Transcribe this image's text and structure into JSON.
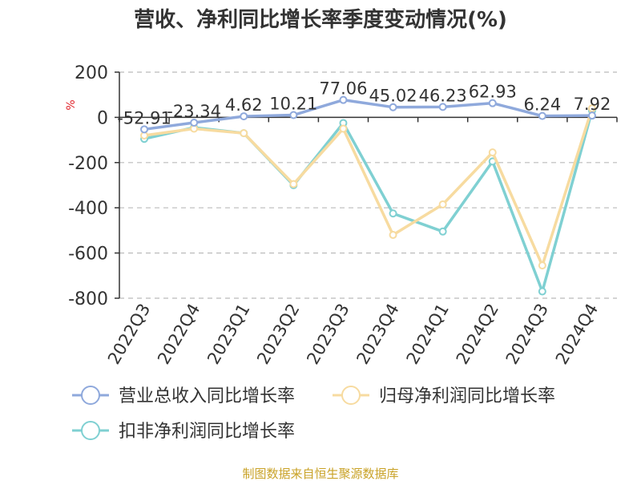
{
  "chart_data": {
    "type": "line",
    "title": "营收、净利同比增长率季度变动情况(%)",
    "ylabel": "%",
    "ylim": [
      -800,
      200
    ],
    "yticks": [
      200,
      0,
      -200,
      -400,
      -600,
      -800
    ],
    "grid": true,
    "legend_position": "bottom",
    "categories": [
      "2022Q3",
      "2022Q4",
      "2023Q1",
      "2023Q2",
      "2023Q3",
      "2023Q4",
      "2024Q1",
      "2024Q2",
      "2024Q3",
      "2024Q4"
    ],
    "series": [
      {
        "name": "营业总收入同比增长率",
        "color": "#8fa9dc",
        "values": [
          -52.91,
          -23.34,
          4.62,
          10.21,
          77.06,
          45.02,
          46.23,
          62.93,
          6.24,
          7.92
        ],
        "labels": [
          "-52.91",
          "-23.34",
          "4.62",
          "10.21",
          "77.06",
          "45.02",
          "46.23",
          "62.93",
          "6.24",
          "7.92"
        ]
      },
      {
        "name": "归母净利润同比增长率",
        "color": "#f7dba0",
        "values": [
          -80,
          -50,
          -70,
          -295,
          -50,
          -520,
          -385,
          -155,
          -655,
          40
        ]
      },
      {
        "name": "扣非净利润同比增长率",
        "color": "#7fd0d2",
        "values": [
          -95,
          -45,
          -70,
          -300,
          -25,
          -425,
          -505,
          -195,
          -770,
          30
        ]
      }
    ]
  },
  "source": "制图数据来自恒生聚源数据库"
}
